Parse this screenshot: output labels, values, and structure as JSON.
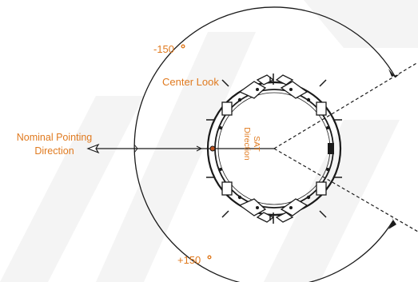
{
  "labels": {
    "minus_angle": "-150",
    "plus_angle": "+150",
    "center_look": "Center Look",
    "nominal_line1": "Nominal Pointing",
    "nominal_line2": "Direction",
    "sat_line1": "SAT",
    "sat_line2": "Direction"
  },
  "colors": {
    "label": "#e07a1f",
    "line": "#1a1a1a",
    "watermark": "#f3f3f3"
  }
}
